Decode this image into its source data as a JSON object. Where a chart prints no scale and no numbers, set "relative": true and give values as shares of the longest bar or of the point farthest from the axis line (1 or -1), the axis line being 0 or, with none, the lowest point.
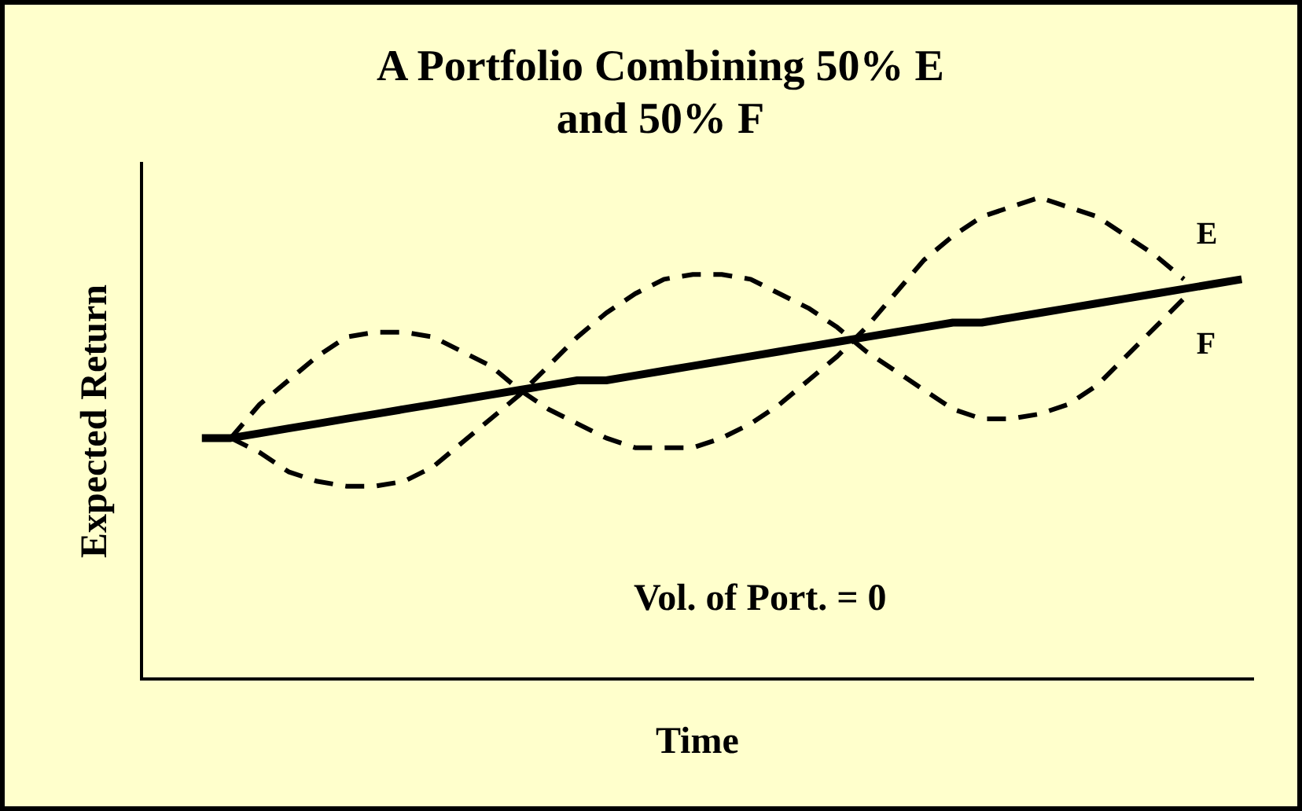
{
  "chart_data": {
    "type": "line",
    "title": "A Portfolio Combining 50% E\nand 50% F",
    "xlabel": "Time",
    "ylabel": "Expected Return",
    "relative": true,
    "grid": false,
    "legend": false,
    "marker": "none",
    "categories": [
      null,
      null,
      null,
      null,
      null,
      null,
      null,
      null,
      null,
      null,
      null,
      null,
      null,
      null,
      null,
      null,
      null,
      null,
      null,
      null,
      null,
      null,
      null,
      null,
      null,
      null,
      null,
      null,
      null,
      null,
      null,
      null,
      null,
      null,
      null,
      null,
      null
    ],
    "series": [
      {
        "name": "E",
        "color": "#000000",
        "line_style": "dashed",
        "values": [
          null,
          0.5,
          0.57,
          0.62,
          0.67,
          0.71,
          0.72,
          0.72,
          0.71,
          0.68,
          0.65,
          0.6,
          0.56,
          0.53,
          0.5,
          0.48,
          0.48,
          0.48,
          0.5,
          0.53,
          0.57,
          0.62,
          0.67,
          0.73,
          0.8,
          0.87,
          0.92,
          0.96,
          0.98,
          1.0,
          0.98,
          0.96,
          0.92,
          0.88,
          0.83,
          null,
          null
        ]
      },
      {
        "name": "F",
        "color": "#000000",
        "line_style": "dashed",
        "values": [
          null,
          0.5,
          0.47,
          0.43,
          0.41,
          0.4,
          0.4,
          0.41,
          0.44,
          0.49,
          0.54,
          0.59,
          0.65,
          0.71,
          0.76,
          0.8,
          0.83,
          0.84,
          0.84,
          0.83,
          0.8,
          0.77,
          0.73,
          0.68,
          0.64,
          0.6,
          0.56,
          0.54,
          0.54,
          0.55,
          0.57,
          0.61,
          0.67,
          0.73,
          0.79,
          null,
          null
        ]
      },
      {
        "color": "#000000",
        "line_style": "solid",
        "values": [
          0.5,
          0.5,
          0.51,
          0.52,
          0.53,
          0.54,
          0.55,
          0.56,
          0.57,
          0.58,
          0.59,
          0.6,
          0.61,
          0.62,
          0.62,
          0.63,
          0.64,
          0.65,
          0.66,
          0.67,
          0.68,
          0.69,
          0.7,
          0.71,
          0.72,
          0.73,
          0.74,
          0.74,
          0.75,
          0.76,
          0.77,
          0.78,
          0.79,
          0.8,
          0.81,
          0.82,
          0.83
        ]
      }
    ],
    "annotations": [
      "Vol. of Port. = 0"
    ]
  }
}
